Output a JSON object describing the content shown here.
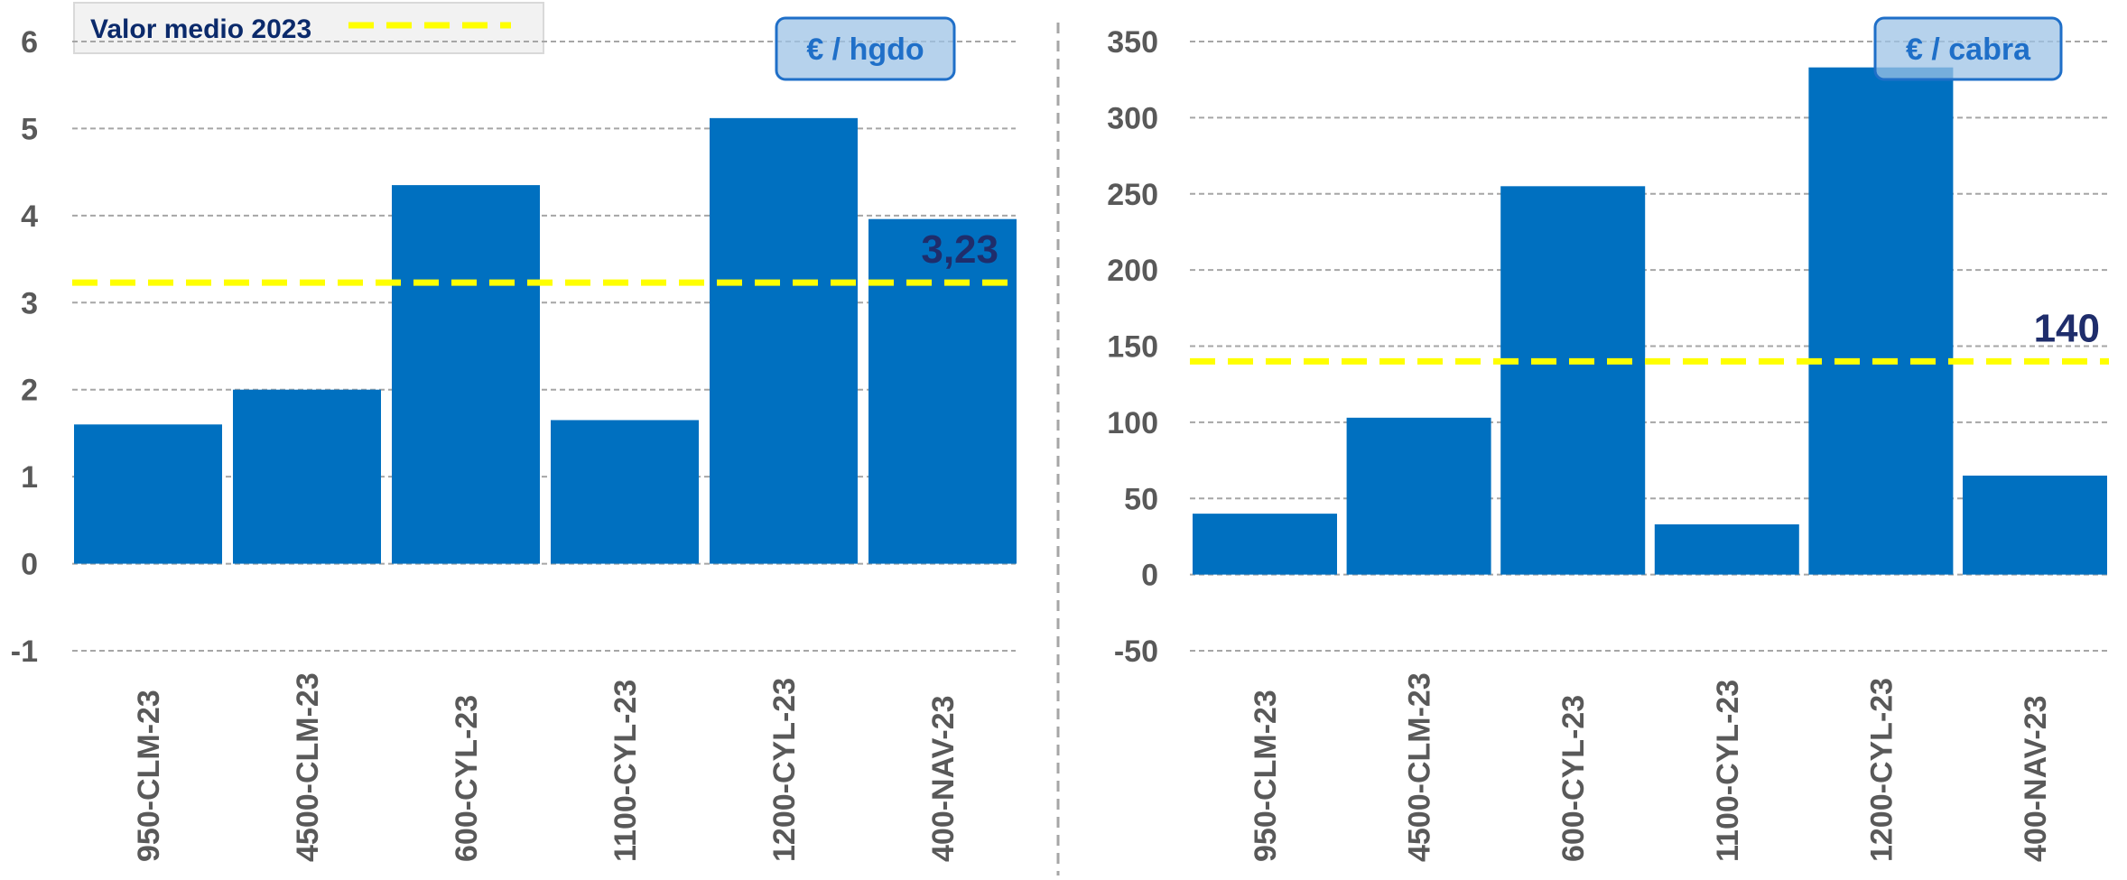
{
  "legend": {
    "label": "Valor medio 2023"
  },
  "colors": {
    "bar": "#0070c0",
    "mean_line": "#ffff00",
    "grid": "#a6a6a6",
    "divider": "#a6a6a6"
  },
  "chart_data": [
    {
      "type": "bar",
      "unit_label": "€ / hgdo",
      "categories": [
        "950-CLM-23",
        "4500-CLM-23",
        "600-CYL-23",
        "1100-CYL-23",
        "1200-CYL-23",
        "400-NAV-23"
      ],
      "values": [
        1.6,
        2.0,
        4.35,
        1.65,
        5.12,
        3.96
      ],
      "yticks": [
        -1,
        0,
        1,
        2,
        3,
        4,
        5,
        6
      ],
      "ylim": [
        -1,
        6
      ],
      "mean": {
        "value": 3.23,
        "label": "3,23"
      },
      "grid": true,
      "legend_position": "top-left"
    },
    {
      "type": "bar",
      "unit_label": "€ / cabra",
      "categories": [
        "950-CLM-23",
        "4500-CLM-23",
        "600-CYL-23",
        "1100-CYL-23",
        "1200-CYL-23",
        "400-NAV-23"
      ],
      "values": [
        40,
        103,
        255,
        33,
        333,
        65
      ],
      "yticks": [
        -50,
        0,
        50,
        100,
        150,
        200,
        250,
        300,
        350
      ],
      "ylim": [
        -50,
        350
      ],
      "mean": {
        "value": 140,
        "label": "140"
      },
      "grid": true
    }
  ]
}
